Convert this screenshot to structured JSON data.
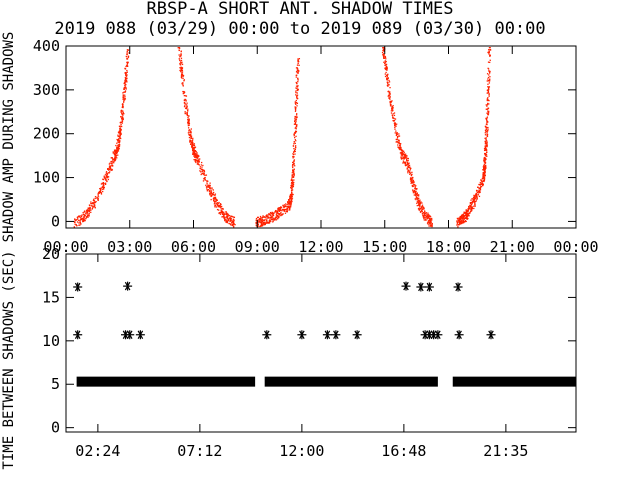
{
  "title": "RBSP-A SHORT ANT. SHADOW TIMES",
  "subtitle": "2019 088 (03/29) 00:00 to 2019 089 (03/30) 00:00",
  "chart_data": [
    {
      "type": "scatter",
      "ylabel": "SHADOW AMP DURING SHADOWS",
      "xlim": [
        0,
        24
      ],
      "ylim": [
        -15,
        400
      ],
      "x_ticks": [
        0,
        3,
        6,
        9,
        12,
        15,
        18,
        21,
        24
      ],
      "x_tick_labels": [
        "00:00",
        "03:00",
        "06:00",
        "09:00",
        "12:00",
        "15:00",
        "18:00",
        "21:00",
        "00:00"
      ],
      "y_ticks": [
        0,
        100,
        200,
        300,
        400
      ],
      "y_tick_labels": [
        "0",
        "100",
        "200",
        "300",
        "400"
      ],
      "series_color": "#ff2200",
      "series": [
        {
          "segment": "rise",
          "x_start": 0.4,
          "x_end": 2.25,
          "y_start": 0,
          "y_end": 150
        },
        {
          "segment": "rise",
          "x_start": 2.25,
          "x_end": 2.9,
          "y_start": 150,
          "y_end": 400
        },
        {
          "segment": "fall",
          "x_start": 5.3,
          "x_end": 6.2,
          "y_start": 400,
          "y_end": 140
        },
        {
          "segment": "fall",
          "x_start": 6.2,
          "x_end": 7.9,
          "y_start": 140,
          "y_end": 0
        },
        {
          "segment": "rise",
          "x_start": 8.9,
          "x_end": 10.5,
          "y_start": 0,
          "y_end": 40
        },
        {
          "segment": "rise",
          "x_start": 10.5,
          "x_end": 10.9,
          "y_start": 40,
          "y_end": 380
        },
        {
          "segment": "fall",
          "x_start": 14.9,
          "x_end": 16.0,
          "y_start": 400,
          "y_end": 140
        },
        {
          "segment": "fall",
          "x_start": 16.0,
          "x_end": 17.2,
          "y_start": 140,
          "y_end": 0
        },
        {
          "segment": "rise",
          "x_start": 18.4,
          "x_end": 19.6,
          "y_start": 0,
          "y_end": 100
        },
        {
          "segment": "rise",
          "x_start": 19.6,
          "x_end": 19.9,
          "y_start": 100,
          "y_end": 400
        }
      ]
    },
    {
      "type": "scatter",
      "ylabel": "TIME BETWEEN SHADOWS (SEC)",
      "xlim": [
        0,
        24
      ],
      "ylim": [
        -0.5,
        20
      ],
      "x_ticks": [
        1.5,
        6.3,
        11.1,
        15.9,
        20.7
      ],
      "x_tick_labels": [
        "02:24",
        "07:12",
        "12:00",
        "16:48",
        "21:35"
      ],
      "y_ticks": [
        0,
        5,
        10,
        15,
        20
      ],
      "y_tick_labels": [
        "0",
        "5",
        "10",
        "15",
        "20"
      ],
      "marker": "asterisk",
      "baseline": {
        "y": 5.3,
        "ranges": [
          [
            0.5,
            8.9
          ],
          [
            9.35,
            17.5
          ],
          [
            18.2,
            24.0
          ]
        ]
      },
      "points": [
        {
          "x": 0.55,
          "y": 16.2
        },
        {
          "x": 0.55,
          "y": 10.7
        },
        {
          "x": 2.9,
          "y": 16.3
        },
        {
          "x": 2.8,
          "y": 10.7
        },
        {
          "x": 3.0,
          "y": 10.7
        },
        {
          "x": 3.5,
          "y": 10.7
        },
        {
          "x": 9.45,
          "y": 10.7
        },
        {
          "x": 11.1,
          "y": 10.7
        },
        {
          "x": 12.3,
          "y": 10.7
        },
        {
          "x": 12.7,
          "y": 10.7
        },
        {
          "x": 13.7,
          "y": 10.7
        },
        {
          "x": 16.0,
          "y": 16.3
        },
        {
          "x": 16.7,
          "y": 16.2
        },
        {
          "x": 17.1,
          "y": 16.2
        },
        {
          "x": 16.9,
          "y": 10.7
        },
        {
          "x": 17.1,
          "y": 10.7
        },
        {
          "x": 17.3,
          "y": 10.7
        },
        {
          "x": 17.5,
          "y": 10.7
        },
        {
          "x": 18.45,
          "y": 16.2
        },
        {
          "x": 18.5,
          "y": 10.7
        },
        {
          "x": 20.0,
          "y": 10.7
        }
      ]
    }
  ]
}
